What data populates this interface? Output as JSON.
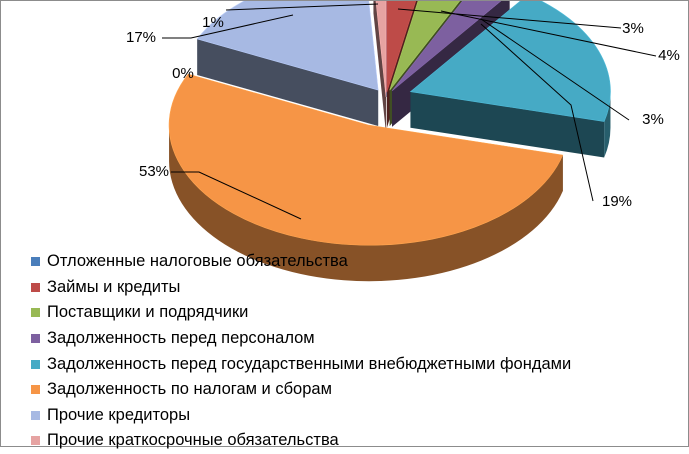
{
  "chart_data": {
    "type": "pie",
    "style": "3d-exploded",
    "legend_position": "bottom",
    "series": [
      {
        "name": "Отложенные налоговые обязательства",
        "value": 0,
        "label": "0%",
        "color": "#4a7ebb"
      },
      {
        "name": "Займы и кредиты",
        "value": 3,
        "label": "3%",
        "color": "#be4b48"
      },
      {
        "name": "Поставщики и подрядчики",
        "value": 4,
        "label": "4%",
        "color": "#98b954"
      },
      {
        "name": "Задолженность перед персоналом",
        "value": 3,
        "label": "3%",
        "color": "#7d60a0"
      },
      {
        "name": "Задолженность перед государственными внебюджетными фондами",
        "value": 19,
        "label": "19%",
        "color": "#46aac5"
      },
      {
        "name": "Задолженность по налогам и сборам",
        "value": 53,
        "label": "53%",
        "color": "#f69546"
      },
      {
        "name": "Прочие кредиторы",
        "value": 17,
        "label": "17%",
        "color": "#a7b9e3"
      },
      {
        "name": "Прочие краткосрочные обязательства",
        "value": 1,
        "label": "1%",
        "color": "#e6a3a2"
      }
    ]
  }
}
